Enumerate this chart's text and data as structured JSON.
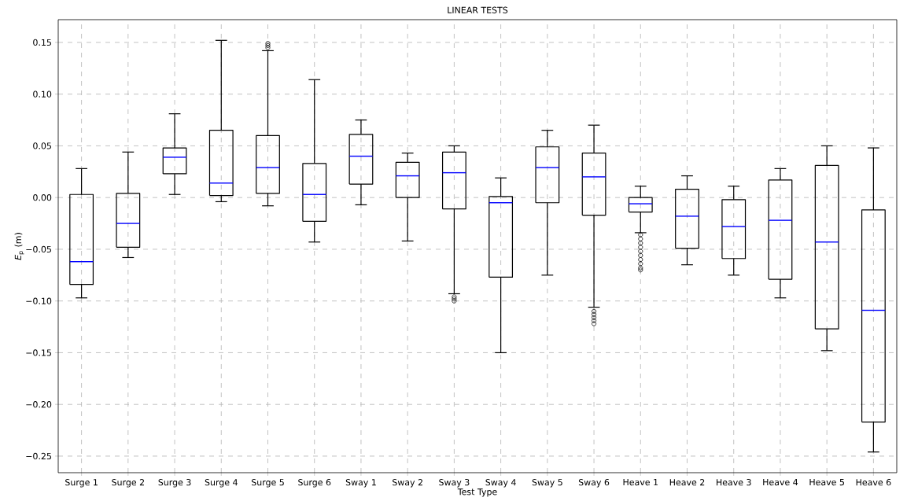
{
  "chart_data": {
    "type": "box",
    "title": "LINEAR TESTS",
    "xlabel": "Test Type",
    "ylabel": "*E*$_{p}$ (m)",
    "categories": [
      "Surge 1",
      "Surge 2",
      "Surge 3",
      "Surge 4",
      "Surge 5",
      "Surge 6",
      "Sway 1",
      "Sway 2",
      "Sway 3",
      "Sway 4",
      "Sway 5",
      "Sway 6",
      "Heave 1",
      "Heave 2",
      "Heave 3",
      "Heave 4",
      "Heave 5",
      "Heave 6"
    ],
    "boxes": [
      {
        "low": -0.097,
        "q1": -0.084,
        "median": -0.062,
        "q3": 0.003,
        "high": 0.028
      },
      {
        "low": -0.058,
        "q1": -0.048,
        "median": -0.025,
        "q3": 0.004,
        "high": 0.044
      },
      {
        "low": 0.003,
        "q1": 0.023,
        "median": 0.039,
        "q3": 0.048,
        "high": 0.081
      },
      {
        "low": -0.004,
        "q1": 0.002,
        "median": 0.014,
        "q3": 0.065,
        "high": 0.152
      },
      {
        "low": -0.008,
        "q1": 0.004,
        "median": 0.029,
        "q3": 0.06,
        "high": 0.142,
        "outliers": [
          0.145,
          0.147,
          0.149
        ]
      },
      {
        "low": -0.043,
        "q1": -0.023,
        "median": 0.003,
        "q3": 0.033,
        "high": 0.114
      },
      {
        "low": -0.007,
        "q1": 0.013,
        "median": 0.04,
        "q3": 0.061,
        "high": 0.075
      },
      {
        "low": -0.042,
        "q1": 0.0,
        "median": 0.021,
        "q3": 0.034,
        "high": 0.043
      },
      {
        "low": -0.093,
        "q1": -0.011,
        "median": 0.024,
        "q3": 0.044,
        "high": 0.05,
        "outliers": [
          -0.096,
          -0.098,
          -0.1
        ]
      },
      {
        "low": -0.15,
        "q1": -0.077,
        "median": -0.005,
        "q3": 0.001,
        "high": 0.019
      },
      {
        "low": -0.075,
        "q1": -0.005,
        "median": 0.029,
        "q3": 0.049,
        "high": 0.065
      },
      {
        "low": -0.106,
        "q1": -0.017,
        "median": 0.02,
        "q3": 0.043,
        "high": 0.07,
        "outliers": [
          -0.11,
          -0.113,
          -0.116,
          -0.119,
          -0.122
        ]
      },
      {
        "low": -0.034,
        "q1": -0.014,
        "median": -0.006,
        "q3": 0.0,
        "high": 0.011,
        "outliers": [
          -0.036,
          -0.04,
          -0.044,
          -0.048,
          -0.052,
          -0.056,
          -0.06,
          -0.064,
          -0.068,
          -0.07
        ]
      },
      {
        "low": -0.065,
        "q1": -0.049,
        "median": -0.018,
        "q3": 0.008,
        "high": 0.021
      },
      {
        "low": -0.075,
        "q1": -0.059,
        "median": -0.028,
        "q3": -0.002,
        "high": 0.011
      },
      {
        "low": -0.097,
        "q1": -0.079,
        "median": -0.022,
        "q3": 0.017,
        "high": 0.028
      },
      {
        "low": -0.148,
        "q1": -0.127,
        "median": -0.043,
        "q3": 0.031,
        "high": 0.05
      },
      {
        "low": -0.246,
        "q1": -0.217,
        "median": -0.109,
        "q3": -0.012,
        "high": 0.048
      }
    ],
    "color": "#000000",
    "ylim": [
      -0.266,
      0.172
    ],
    "yticks": [
      {
        "value": -0.25,
        "label": "−0.25"
      },
      {
        "value": -0.2,
        "label": "−0.20"
      },
      {
        "value": -0.15,
        "label": "−0.15"
      },
      {
        "value": -0.1,
        "label": "−0.10"
      },
      {
        "value": -0.05,
        "label": "−0.05"
      },
      {
        "value": 0,
        "label": "0.00"
      },
      {
        "value": 0.05,
        "label": "0.05"
      },
      {
        "value": 0.1,
        "label": "0.10"
      },
      {
        "value": 0.15,
        "label": "0.15"
      }
    ],
    "grid": true,
    "marker": "circle"
  }
}
